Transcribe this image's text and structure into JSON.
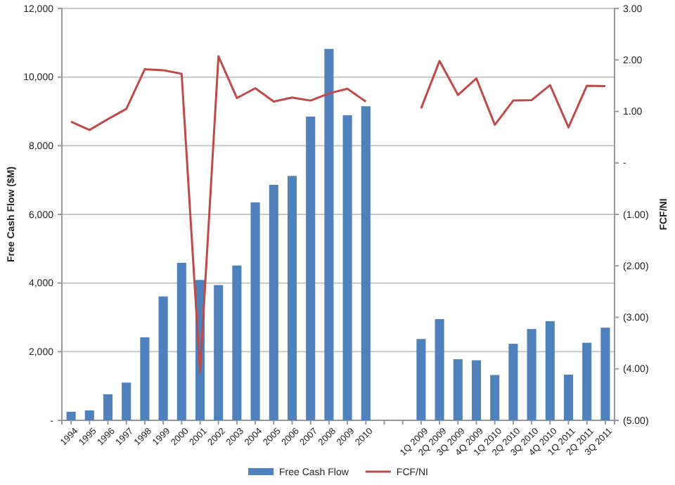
{
  "chart_data": {
    "type": "bar",
    "ylabel": "Free Cash Flow ($M)",
    "y2label": "FCF/NI",
    "categories": [
      "1994",
      "1995",
      "1996",
      "1997",
      "1998",
      "1999",
      "2000",
      "2001",
      "2002",
      "2003",
      "2004",
      "2005",
      "2006",
      "2007",
      "2008",
      "2009",
      "2010",
      null,
      null,
      "1Q 2009",
      "2Q 2009",
      "3Q 2009",
      "4Q 2009",
      "1Q 2010",
      "2Q 2010",
      "3Q 2010",
      "4Q 2010",
      "1Q 2011",
      "2Q 2011",
      "3Q 2011"
    ],
    "series": [
      {
        "name": "Free Cash Flow",
        "color": "#4f81bd",
        "values": [
          250,
          290,
          760,
          1100,
          2420,
          3610,
          4590,
          4090,
          3940,
          4510,
          6350,
          6860,
          7120,
          8850,
          10820,
          8890,
          9150,
          null,
          null,
          2370,
          2950,
          1780,
          1750,
          1320,
          2230,
          2660,
          2890,
          1330,
          2260,
          2700
        ]
      },
      {
        "name": "FCF/NI",
        "type": "line",
        "axis": "y2",
        "color": "#be4b48",
        "values": [
          0.8,
          0.64,
          0.85,
          1.05,
          1.82,
          1.8,
          1.73,
          -4.07,
          2.07,
          1.26,
          1.45,
          1.19,
          1.27,
          1.21,
          1.35,
          1.44,
          1.19,
          null,
          null,
          1.06,
          1.98,
          1.32,
          1.64,
          0.74,
          1.21,
          1.22,
          1.51,
          0.69,
          1.5,
          1.49
        ]
      }
    ],
    "ylim": [
      0,
      12000
    ],
    "yticks": [
      {
        "value": 0,
        "label": "-"
      },
      {
        "value": 2000,
        "label": "2,000"
      },
      {
        "value": 4000,
        "label": "4,000"
      },
      {
        "value": 6000,
        "label": "6,000"
      },
      {
        "value": 8000,
        "label": "8,000"
      },
      {
        "value": 10000,
        "label": "10,000"
      },
      {
        "value": 12000,
        "label": "12,000"
      }
    ],
    "y2lim": [
      -5,
      3
    ],
    "y2ticks": [
      {
        "value": -5,
        "label": "(5.00)"
      },
      {
        "value": -4,
        "label": "(4.00)"
      },
      {
        "value": -3,
        "label": "(3.00)"
      },
      {
        "value": -2,
        "label": "(2.00)"
      },
      {
        "value": -1,
        "label": "(1.00)"
      },
      {
        "value": 0,
        "label": "-"
      },
      {
        "value": 1,
        "label": "1.00"
      },
      {
        "value": 2,
        "label": "2.00"
      },
      {
        "value": 3,
        "label": "3.00"
      }
    ],
    "grid": "y",
    "legend": "bottom",
    "marker": "none",
    "line_style": "solid"
  }
}
